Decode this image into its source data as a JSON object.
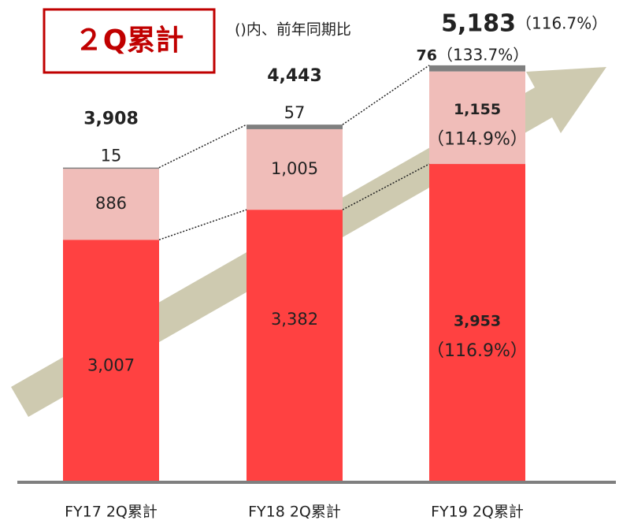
{
  "badge": "２Q累計",
  "note": "()内、前年同期比",
  "chart_data": {
    "type": "bar",
    "stacked": true,
    "categories": [
      "FY17 2Q累計",
      "FY18 2Q累計",
      "FY19 2Q累計"
    ],
    "series": [
      {
        "color": "#ff4141",
        "values": [
          3007,
          3382,
          3953
        ],
        "value_labels": [
          "3,007",
          "3,382",
          "3,953"
        ],
        "yoy_label": "（116.9%）"
      },
      {
        "color": "#f0bdb9",
        "values": [
          886,
          1005,
          1155
        ],
        "value_labels": [
          "886",
          "1,005",
          "1,155"
        ],
        "yoy_label": "（114.9%）"
      },
      {
        "color": "#7f7f7f",
        "values": [
          15,
          57,
          76
        ],
        "value_labels": [
          "15",
          "57",
          "76"
        ],
        "yoy_label": "（133.7%）"
      }
    ],
    "totals": {
      "values": [
        3908,
        4443,
        5183
      ],
      "value_labels": [
        "3,908",
        "4,443",
        "5,183"
      ],
      "yoy_label": "（116.7%）"
    }
  }
}
